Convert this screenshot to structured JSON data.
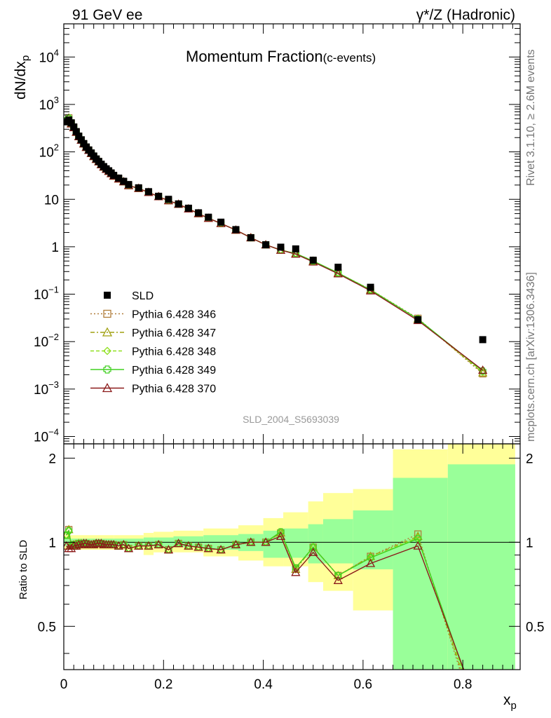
{
  "header": {
    "energy_label": "91 GeV ee",
    "process_label": "γ*/Z (Hadronic)"
  },
  "side_labels": {
    "rivet": "Rivet 3.1.10, ≥ 2.6M events",
    "mcplots": "mcplots.cern.ch [arXiv:1306.3436]"
  },
  "chart_data": [
    {
      "type": "scatter",
      "panel": "main",
      "title": "Momentum Fraction",
      "subtitle": "(c-events)",
      "ylabel": "dN/dx",
      "ylabel_sub": "p",
      "watermark": "SLD_2004_S5693039",
      "yscale": "log",
      "ylim": [
        7e-05,
        50000
      ],
      "xlim": [
        0,
        0.915
      ],
      "y_tick_labels": [
        "10^-4",
        "10^-3",
        "10^-2",
        "10^-1",
        "1",
        "10",
        "10^2",
        "10^3",
        "10^4"
      ],
      "legend_position": "lower-left",
      "legend": [
        "SLD",
        "Pythia 6.428 346",
        "Pythia 6.428 347",
        "Pythia 6.428 348",
        "Pythia 6.428 349",
        "Pythia 6.428 370"
      ],
      "x": [
        0.005,
        0.01,
        0.015,
        0.02,
        0.025,
        0.03,
        0.035,
        0.04,
        0.045,
        0.05,
        0.055,
        0.06,
        0.065,
        0.07,
        0.075,
        0.08,
        0.085,
        0.09,
        0.095,
        0.1,
        0.11,
        0.12,
        0.13,
        0.15,
        0.17,
        0.19,
        0.21,
        0.23,
        0.25,
        0.27,
        0.29,
        0.315,
        0.345,
        0.375,
        0.405,
        0.435,
        0.465,
        0.5,
        0.55,
        0.615,
        0.71,
        0.84
      ],
      "data": {
        "name": "SLD",
        "color": "#000000",
        "y": [
          430,
          470,
          410,
          335,
          268,
          215,
          180,
          150,
          127,
          110,
          95,
          82,
          71,
          63,
          55,
          49,
          44,
          40,
          36,
          32,
          28,
          24,
          20.5,
          17.5,
          14.5,
          11.6,
          10.0,
          8.0,
          6.5,
          5.2,
          4.2,
          3.3,
          2.3,
          1.55,
          1.1,
          0.98,
          0.9,
          0.52,
          0.37,
          0.14,
          0.029,
          0.011
        ]
      },
      "series": [
        {
          "name": "Pythia 6.428 346",
          "color": "#b07d3a",
          "marker": "square",
          "dash": "2,3",
          "y": [
            455,
            520,
            400,
            330,
            260,
            212,
            178,
            148,
            125,
            108,
            93,
            80,
            70,
            62,
            54,
            48,
            43,
            39,
            35,
            31,
            27,
            23.5,
            19.5,
            17,
            14,
            11.4,
            9.4,
            7.9,
            6.3,
            5.0,
            4.0,
            3.1,
            2.25,
            1.55,
            1.1,
            0.85,
            0.72,
            0.5,
            0.28,
            0.125,
            0.031,
            0.0021
          ]
        },
        {
          "name": "Pythia 6.428 347",
          "color": "#a0a010",
          "marker": "triangle",
          "dash": "6,3,2,3",
          "y": [
            455,
            520,
            400,
            330,
            260,
            212,
            178,
            148,
            125,
            108,
            93,
            80,
            70,
            62,
            54,
            48,
            43,
            39,
            35,
            31,
            27,
            23.5,
            19.5,
            17,
            14,
            11.4,
            9.4,
            7.9,
            6.3,
            5.0,
            4.0,
            3.1,
            2.25,
            1.55,
            1.1,
            0.85,
            0.72,
            0.5,
            0.28,
            0.124,
            0.03,
            0.0022
          ]
        },
        {
          "name": "Pythia 6.428 348",
          "color": "#90e020",
          "marker": "diamond",
          "dash": "5,3",
          "y": [
            455,
            518,
            400,
            330,
            260,
            212,
            178,
            148,
            125,
            108,
            93,
            80,
            70,
            62,
            54,
            48,
            43,
            39,
            35,
            31,
            27,
            23.5,
            19.5,
            17,
            14,
            11.4,
            9.4,
            7.9,
            6.3,
            5.0,
            4.0,
            3.1,
            2.25,
            1.55,
            1.1,
            0.85,
            0.72,
            0.5,
            0.28,
            0.124,
            0.03,
            0.0023
          ]
        },
        {
          "name": "Pythia 6.428 349",
          "color": "#40d020",
          "marker": "cross",
          "dash": "",
          "y": [
            455,
            516,
            400,
            330,
            260,
            212,
            178,
            148,
            125,
            108,
            93,
            80,
            70,
            62,
            54,
            48,
            43,
            39,
            35,
            31,
            27,
            23.5,
            19.5,
            17,
            14,
            11.4,
            9.4,
            7.9,
            6.3,
            5.0,
            4.0,
            3.1,
            2.25,
            1.55,
            1.1,
            0.85,
            0.72,
            0.5,
            0.28,
            0.123,
            0.03,
            0.0024
          ]
        },
        {
          "name": "Pythia 6.428 370",
          "color": "#8b1a1a",
          "marker": "triangle-open",
          "dash": "",
          "y": [
            450,
            450,
            390,
            325,
            260,
            210,
            177,
            148,
            125,
            108,
            93,
            80,
            70,
            62,
            54,
            48,
            43,
            39,
            35,
            31,
            27,
            23.5,
            19.5,
            17,
            14,
            11.4,
            9.4,
            7.9,
            6.3,
            5.0,
            4.0,
            3.1,
            2.25,
            1.55,
            1.1,
            0.85,
            0.7,
            0.48,
            0.27,
            0.118,
            0.028,
            0.0025
          ]
        }
      ]
    },
    {
      "type": "line",
      "panel": "ratio",
      "ylabel": "Ratio to SLD",
      "xlabel": "x",
      "xlabel_sub": "p",
      "xlim": [
        0,
        0.915
      ],
      "ylim": [
        0.35,
        2.25
      ],
      "x_tick_labels": [
        "0",
        "0.2",
        "0.4",
        "0.6",
        "0.8"
      ],
      "y_tick_labels": [
        "0.5",
        "1",
        "2"
      ],
      "bands": {
        "edges": [
          0.0,
          0.1,
          0.16,
          0.18,
          0.22,
          0.28,
          0.35,
          0.4,
          0.44,
          0.49,
          0.52,
          0.58,
          0.66,
          0.77,
          0.905
        ],
        "stat_lo": [
          0.97,
          0.97,
          0.97,
          0.96,
          0.96,
          0.94,
          0.93,
          0.88,
          0.88,
          0.84,
          0.84,
          0.8,
          0.33,
          0.33
        ],
        "stat_hi": [
          1.03,
          1.03,
          1.04,
          1.04,
          1.05,
          1.06,
          1.07,
          1.1,
          1.12,
          1.16,
          1.21,
          1.3,
          1.7,
          1.9
        ],
        "total_lo": [
          0.94,
          0.94,
          0.9,
          0.92,
          0.92,
          0.89,
          0.86,
          0.82,
          0.82,
          0.72,
          0.67,
          0.57,
          0.33,
          0.33
        ],
        "total_hi": [
          1.06,
          1.06,
          1.08,
          1.09,
          1.1,
          1.12,
          1.15,
          1.22,
          1.28,
          1.4,
          1.5,
          1.55,
          2.15,
          2.25
        ],
        "stat_color": "#99ff99",
        "total_color": "#ffff99"
      },
      "series": [
        {
          "name": "Pythia 6.428 346",
          "y": [
            1.06,
            1.11,
            0.97,
            0.98,
            0.97,
            0.99,
            0.99,
            0.99,
            0.99,
            0.98,
            0.98,
            0.98,
            0.99,
            0.99,
            0.99,
            0.98,
            0.98,
            0.98,
            0.98,
            0.98,
            0.97,
            0.98,
            0.95,
            0.97,
            0.97,
            0.98,
            0.94,
            0.99,
            0.97,
            0.96,
            0.95,
            0.94,
            0.98,
            1.0,
            1.0,
            1.08,
            0.8,
            0.96,
            0.76,
            0.89,
            1.07,
            0.19
          ]
        },
        {
          "name": "Pythia 6.428 347",
          "y": [
            1.06,
            1.11,
            0.97,
            0.98,
            0.97,
            0.99,
            0.99,
            0.99,
            0.99,
            0.98,
            0.98,
            0.98,
            0.99,
            0.99,
            0.99,
            0.98,
            0.98,
            0.98,
            0.98,
            0.98,
            0.97,
            0.98,
            0.95,
            0.97,
            0.97,
            0.98,
            0.94,
            0.99,
            0.97,
            0.96,
            0.95,
            0.94,
            0.98,
            1.0,
            1.0,
            1.08,
            0.8,
            0.96,
            0.76,
            0.89,
            1.05,
            0.2
          ]
        },
        {
          "name": "Pythia 6.428 348",
          "y": [
            1.06,
            1.1,
            0.97,
            0.98,
            0.97,
            0.99,
            0.99,
            0.99,
            0.99,
            0.98,
            0.98,
            0.98,
            0.99,
            0.99,
            0.99,
            0.98,
            0.98,
            0.98,
            0.98,
            0.98,
            0.97,
            0.98,
            0.95,
            0.97,
            0.97,
            0.98,
            0.94,
            0.99,
            0.97,
            0.96,
            0.95,
            0.94,
            0.98,
            1.0,
            1.0,
            1.09,
            0.81,
            0.96,
            0.76,
            0.88,
            1.04,
            0.21
          ]
        },
        {
          "name": "Pythia 6.428 349",
          "y": [
            1.06,
            1.1,
            0.97,
            0.98,
            0.97,
            0.99,
            0.99,
            0.99,
            0.99,
            0.98,
            0.98,
            0.98,
            0.99,
            0.99,
            0.99,
            0.98,
            0.98,
            0.98,
            0.98,
            0.98,
            0.97,
            0.98,
            0.95,
            0.97,
            0.97,
            0.98,
            0.94,
            0.99,
            0.97,
            0.96,
            0.95,
            0.94,
            0.98,
            1.0,
            1.0,
            1.09,
            0.81,
            0.96,
            0.76,
            0.88,
            1.03,
            0.22
          ]
        },
        {
          "name": "Pythia 6.428 370",
          "y": [
            0.97,
            0.95,
            0.95,
            0.97,
            0.97,
            0.98,
            0.98,
            0.99,
            0.99,
            0.98,
            0.98,
            0.98,
            0.99,
            0.99,
            0.99,
            0.98,
            0.98,
            0.98,
            0.98,
            0.98,
            0.97,
            0.98,
            0.95,
            0.97,
            0.97,
            0.98,
            0.94,
            0.99,
            0.97,
            0.96,
            0.95,
            0.94,
            0.98,
            1.0,
            1.0,
            1.05,
            0.78,
            0.92,
            0.73,
            0.84,
            0.97,
            0.23
          ]
        }
      ]
    }
  ]
}
